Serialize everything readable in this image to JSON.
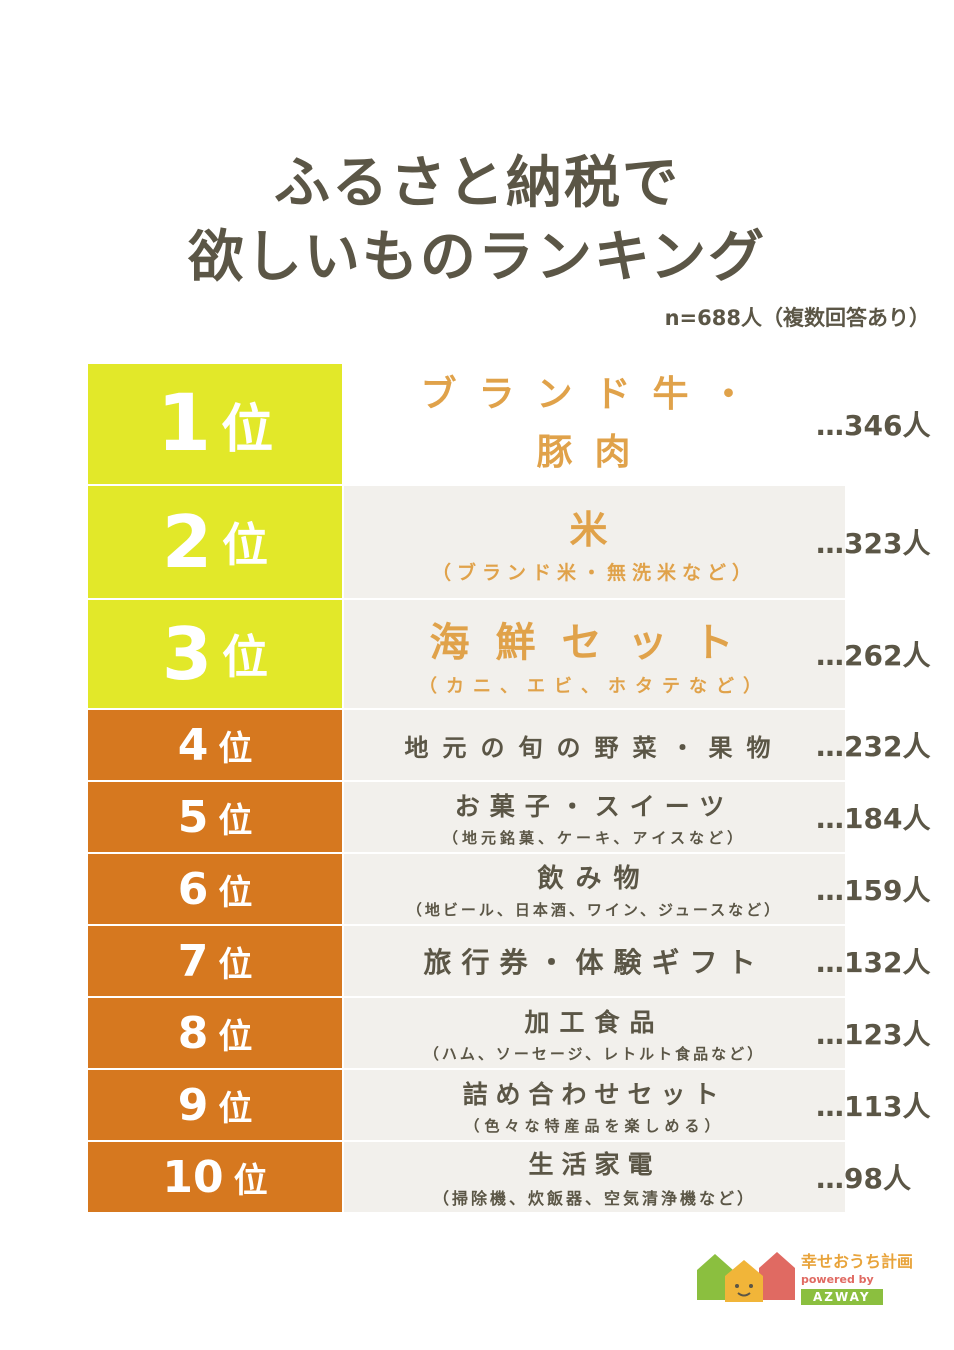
{
  "header": {
    "title_line1": "ふるさと納税で",
    "title_line2": "欲しいものランキング",
    "sample_note": "n=688人（複数回答あり）"
  },
  "colors": {
    "top3_rank_bg": "#e2e829",
    "rest_rank_bg": "#d6781f",
    "item_bg": "#f2f0ec",
    "top3_item_text": "#e0a24a",
    "rest_item_text": "#5b5646"
  },
  "rank_suffix": "位",
  "chart_data": {
    "type": "table",
    "unit": "人",
    "rows": [
      {
        "rank": "1",
        "item": "ブランド牛・豚肉",
        "sub": "",
        "value": 346,
        "count_label": "…346人"
      },
      {
        "rank": "2",
        "item": "米",
        "sub": "（ブランド米・無洗米など）",
        "value": 323,
        "count_label": "…323人"
      },
      {
        "rank": "3",
        "item": "海鮮セット",
        "sub": "（カニ、エビ、ホタテなど）",
        "value": 262,
        "count_label": "…262人"
      },
      {
        "rank": "4",
        "item": "地元の旬の野菜・果物",
        "sub": "",
        "value": 232,
        "count_label": "…232人"
      },
      {
        "rank": "5",
        "item": "お菓子・スイーツ",
        "sub": "（地元銘菓、ケーキ、アイスなど）",
        "value": 184,
        "count_label": "…184人"
      },
      {
        "rank": "6",
        "item": "飲み物",
        "sub": "（地ビール、日本酒、ワイン、ジュースなど）",
        "value": 159,
        "count_label": "…159人"
      },
      {
        "rank": "7",
        "item": "旅行券・体験ギフト",
        "sub": "",
        "value": 132,
        "count_label": "…132人"
      },
      {
        "rank": "8",
        "item": "加工食品",
        "sub": "（ハム、ソーセージ、レトルト食品など）",
        "value": 123,
        "count_label": "…123人"
      },
      {
        "rank": "9",
        "item": "詰め合わせセット",
        "sub": "（色々な特産品を楽しめる）",
        "value": 113,
        "count_label": "…113人"
      },
      {
        "rank": "10",
        "item": "生活家電",
        "sub": "（掃除機、炊飯器、空気清浄機など）",
        "value": 98,
        "count_label": "…98人"
      }
    ]
  },
  "logo": {
    "main": "幸せおうち計画",
    "by": "powered by",
    "brand": "AZWAY"
  }
}
